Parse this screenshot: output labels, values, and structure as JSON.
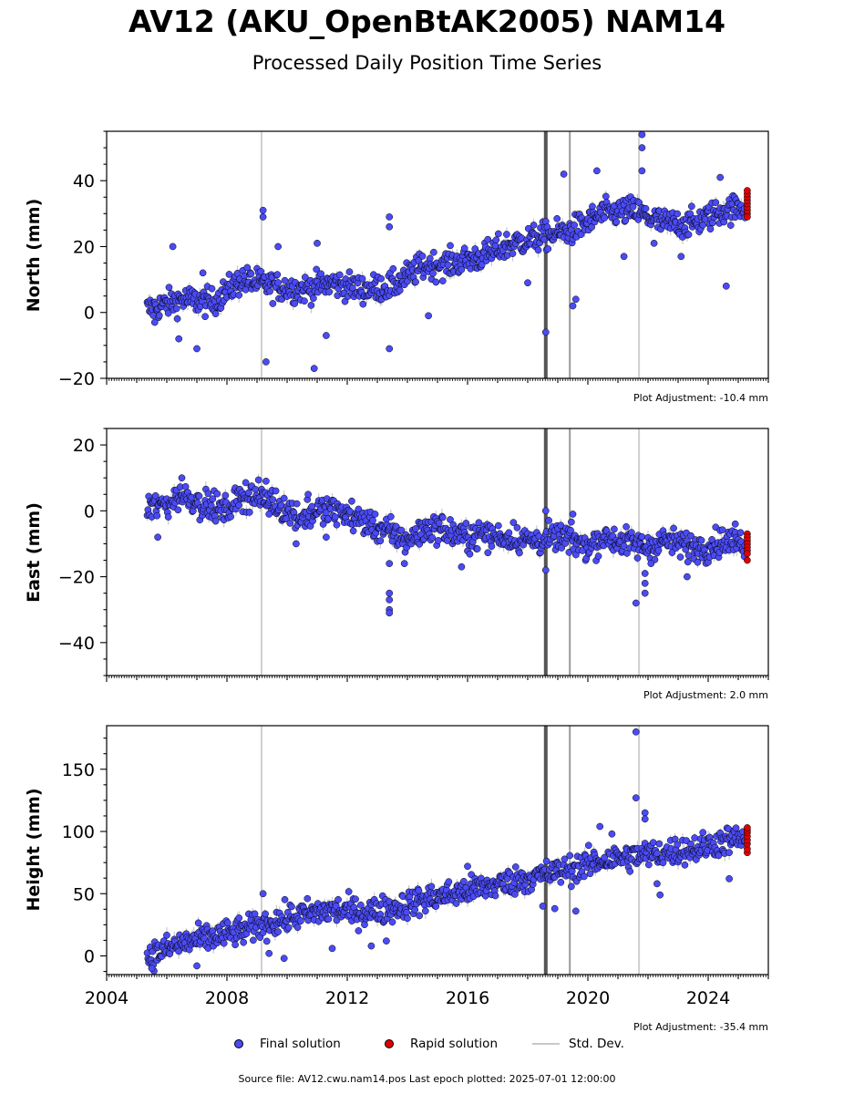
{
  "header": {
    "title": "AV12 (AKU_OpenBtAK2005) NAM14",
    "subtitle": "Processed Daily Position Time Series"
  },
  "legend": {
    "final": "Final solution",
    "rapid": "Rapid solution",
    "stddev": "Std. Dev."
  },
  "footer": {
    "source": "Source file: AV12.cwu.nam14.pos  Last epoch plotted: 2025-07-01 12:00:00"
  },
  "colors": {
    "final": "#4b4bf5",
    "rapid": "#e00000",
    "stddev": "#c8c8c8",
    "event_dark": "#555555",
    "event_mid": "#999999",
    "event_light": "#d0d0d0"
  },
  "chart_data": [
    {
      "type": "scatter",
      "component": "north",
      "ylabel": "North (mm)",
      "ylim": [
        -20,
        55
      ],
      "yticks": [
        -20,
        0,
        20,
        40
      ],
      "xlim": [
        2004,
        2026
      ],
      "adjustment": "Plot Adjustment: -10.4 mm",
      "trend": [
        [
          2005.4,
          1
        ],
        [
          2006.5,
          4
        ],
        [
          2007.5,
          3
        ],
        [
          2008.5,
          10
        ],
        [
          2009.5,
          8
        ],
        [
          2010.5,
          7
        ],
        [
          2011.5,
          9
        ],
        [
          2012.5,
          7
        ],
        [
          2013.5,
          8
        ],
        [
          2014.5,
          14
        ],
        [
          2015.5,
          15
        ],
        [
          2016.5,
          17
        ],
        [
          2017.5,
          21
        ],
        [
          2018.5,
          23
        ],
        [
          2019.5,
          25
        ],
        [
          2020.5,
          30
        ],
        [
          2021.5,
          31
        ],
        [
          2022.5,
          27
        ],
        [
          2023.5,
          27
        ],
        [
          2024.5,
          31
        ],
        [
          2025.3,
          32
        ]
      ],
      "outliers": [
        [
          2005.6,
          -3
        ],
        [
          2006.2,
          20
        ],
        [
          2006.4,
          -8
        ],
        [
          2007.0,
          -11
        ],
        [
          2007.2,
          12
        ],
        [
          2009.2,
          31
        ],
        [
          2009.2,
          29
        ],
        [
          2009.3,
          -15
        ],
        [
          2009.7,
          20
        ],
        [
          2010.9,
          -17
        ],
        [
          2011.0,
          21
        ],
        [
          2011.3,
          -7
        ],
        [
          2013.4,
          29
        ],
        [
          2013.4,
          26
        ],
        [
          2013.4,
          -11
        ],
        [
          2014.7,
          -1
        ],
        [
          2018.0,
          9
        ],
        [
          2018.6,
          -6
        ],
        [
          2019.2,
          42
        ],
        [
          2019.5,
          2
        ],
        [
          2019.6,
          4
        ],
        [
          2020.3,
          43
        ],
        [
          2021.2,
          17
        ],
        [
          2022.2,
          21
        ],
        [
          2023.1,
          17
        ],
        [
          2021.8,
          54
        ],
        [
          2021.8,
          50
        ],
        [
          2021.8,
          43
        ],
        [
          2024.6,
          8
        ],
        [
          2024.4,
          41
        ]
      ],
      "rapid": [
        [
          2025.3,
          30
        ],
        [
          2025.3,
          31
        ],
        [
          2025.3,
          32
        ],
        [
          2025.3,
          33
        ],
        [
          2025.3,
          34
        ],
        [
          2025.3,
          35
        ],
        [
          2025.3,
          36
        ],
        [
          2025.3,
          37
        ],
        [
          2025.3,
          29
        ]
      ]
    },
    {
      "type": "scatter",
      "component": "east",
      "ylabel": "East (mm)",
      "ylim": [
        -50,
        25
      ],
      "yticks": [
        -40,
        -20,
        0,
        20
      ],
      "xlim": [
        2004,
        2026
      ],
      "adjustment": "Plot Adjustment: 2.0 mm",
      "trend": [
        [
          2005.4,
          1
        ],
        [
          2006.0,
          2
        ],
        [
          2006.5,
          5
        ],
        [
          2007.0,
          3
        ],
        [
          2007.5,
          1
        ],
        [
          2008.0,
          0
        ],
        [
          2008.5,
          5
        ],
        [
          2009.0,
          4
        ],
        [
          2009.5,
          3
        ],
        [
          2010.0,
          0
        ],
        [
          2010.5,
          -2
        ],
        [
          2011.0,
          0
        ],
        [
          2011.5,
          0
        ],
        [
          2012.0,
          -1
        ],
        [
          2012.5,
          -3
        ],
        [
          2013.0,
          -5
        ],
        [
          2013.5,
          -7
        ],
        [
          2014.0,
          -9
        ],
        [
          2014.5,
          -6
        ],
        [
          2015.0,
          -5
        ],
        [
          2015.5,
          -7
        ],
        [
          2016.0,
          -8
        ],
        [
          2016.5,
          -7
        ],
        [
          2017.0,
          -8
        ],
        [
          2017.5,
          -8
        ],
        [
          2018.0,
          -9
        ],
        [
          2018.5,
          -9
        ],
        [
          2019.0,
          -8
        ],
        [
          2019.5,
          -9
        ],
        [
          2020.0,
          -11
        ],
        [
          2020.5,
          -8
        ],
        [
          2021.0,
          -9
        ],
        [
          2021.5,
          -10
        ],
        [
          2022.0,
          -11
        ],
        [
          2022.5,
          -9
        ],
        [
          2023.0,
          -10
        ],
        [
          2023.5,
          -11
        ],
        [
          2024.0,
          -11
        ],
        [
          2024.5,
          -9
        ],
        [
          2025.3,
          -10
        ]
      ],
      "outliers": [
        [
          2005.7,
          -8
        ],
        [
          2006.5,
          10
        ],
        [
          2009.3,
          9
        ],
        [
          2009.4,
          -1
        ],
        [
          2010.3,
          -10
        ],
        [
          2010.7,
          5
        ],
        [
          2011.3,
          -8
        ],
        [
          2013.4,
          -25
        ],
        [
          2013.4,
          -27
        ],
        [
          2013.4,
          -30
        ],
        [
          2013.4,
          -31
        ],
        [
          2013.4,
          -16
        ],
        [
          2013.9,
          -16
        ],
        [
          2015.8,
          -17
        ],
        [
          2018.6,
          0
        ],
        [
          2018.6,
          -18
        ],
        [
          2019.5,
          -1
        ],
        [
          2021.6,
          -28
        ],
        [
          2021.9,
          -25
        ],
        [
          2021.9,
          -22
        ],
        [
          2021.9,
          -19
        ],
        [
          2022.1,
          -16
        ],
        [
          2023.3,
          -20
        ],
        [
          2024.9,
          -4
        ]
      ],
      "rapid": [
        [
          2025.3,
          -7
        ],
        [
          2025.3,
          -8
        ],
        [
          2025.3,
          -9
        ],
        [
          2025.3,
          -10
        ],
        [
          2025.3,
          -11
        ],
        [
          2025.3,
          -12
        ],
        [
          2025.3,
          -13
        ],
        [
          2025.3,
          -15
        ]
      ]
    },
    {
      "type": "scatter",
      "component": "height",
      "ylabel": "Height (mm)",
      "ylim": [
        -15,
        185
      ],
      "yticks": [
        0,
        50,
        100,
        150
      ],
      "xlim": [
        2004,
        2026
      ],
      "xticks": [
        2004,
        2008,
        2012,
        2016,
        2020,
        2024
      ],
      "adjustment": "Plot Adjustment: -35.4 mm",
      "trend": [
        [
          2005.4,
          0
        ],
        [
          2006.5,
          10
        ],
        [
          2007.5,
          15
        ],
        [
          2008.5,
          20
        ],
        [
          2009.5,
          27
        ],
        [
          2010.5,
          33
        ],
        [
          2011.5,
          37
        ],
        [
          2012.5,
          35
        ],
        [
          2013.5,
          38
        ],
        [
          2014.5,
          45
        ],
        [
          2015.5,
          50
        ],
        [
          2016.5,
          55
        ],
        [
          2017.5,
          60
        ],
        [
          2018.5,
          65
        ],
        [
          2019.5,
          70
        ],
        [
          2020.5,
          77
        ],
        [
          2021.5,
          80
        ],
        [
          2022.5,
          83
        ],
        [
          2023.5,
          86
        ],
        [
          2024.5,
          92
        ],
        [
          2025.3,
          95
        ]
      ],
      "outliers": [
        [
          2005.5,
          -10
        ],
        [
          2007.0,
          -8
        ],
        [
          2009.2,
          50
        ],
        [
          2009.4,
          2
        ],
        [
          2009.9,
          -2
        ],
        [
          2011.5,
          6
        ],
        [
          2012.8,
          8
        ],
        [
          2013.3,
          12
        ],
        [
          2016.0,
          72
        ],
        [
          2018.5,
          40
        ],
        [
          2018.9,
          38
        ],
        [
          2019.6,
          36
        ],
        [
          2020.4,
          104
        ],
        [
          2020.8,
          98
        ],
        [
          2021.6,
          180
        ],
        [
          2021.6,
          127
        ],
        [
          2021.9,
          115
        ],
        [
          2021.9,
          110
        ],
        [
          2022.3,
          58
        ],
        [
          2022.4,
          49
        ],
        [
          2024.7,
          62
        ]
      ],
      "rapid": [
        [
          2025.3,
          83
        ],
        [
          2025.3,
          86
        ],
        [
          2025.3,
          90
        ],
        [
          2025.3,
          93
        ],
        [
          2025.3,
          96
        ],
        [
          2025.3,
          99
        ],
        [
          2025.3,
          101
        ],
        [
          2025.3,
          103
        ]
      ]
    }
  ],
  "events": [
    {
      "x": 2009.15,
      "style": "light"
    },
    {
      "x": 2018.6,
      "style": "dark"
    },
    {
      "x": 2019.4,
      "style": "mid"
    },
    {
      "x": 2021.7,
      "style": "light"
    }
  ]
}
